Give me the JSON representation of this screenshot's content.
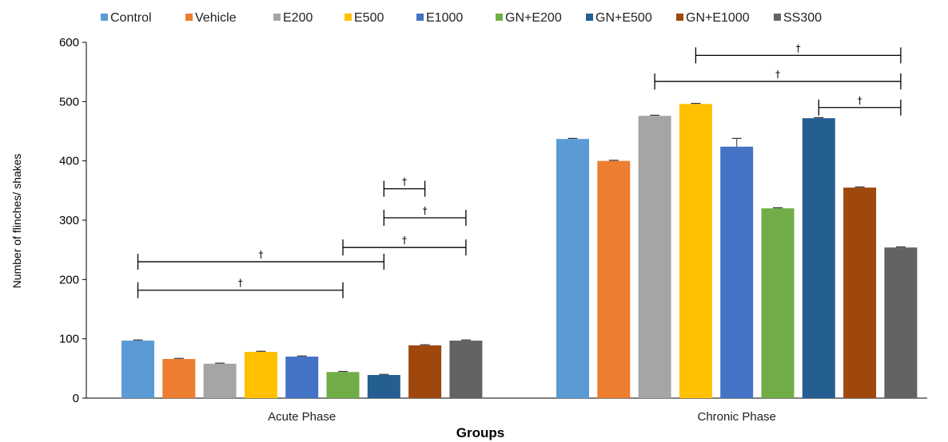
{
  "chart_data": {
    "type": "bar",
    "xlabel": "Groups",
    "ylabel": "Number of flinches/ shakes",
    "ylim": [
      0,
      600
    ],
    "yticks": [
      0,
      100,
      200,
      300,
      400,
      500,
      600
    ],
    "grid": false,
    "legend_position": "top",
    "categories": [
      "Acute Phase",
      "Chronic Phase"
    ],
    "series": [
      {
        "name": "Control",
        "color": "#5B9BD5",
        "values": [
          97,
          437
        ],
        "errors": [
          1,
          1
        ]
      },
      {
        "name": "Vehicle",
        "color": "#ED7D31",
        "values": [
          66,
          400
        ],
        "errors": [
          1,
          1
        ]
      },
      {
        "name": "E200",
        "color": "#A5A5A5",
        "values": [
          58,
          476
        ],
        "errors": [
          1,
          1
        ]
      },
      {
        "name": "E500",
        "color": "#FFC000",
        "values": [
          78,
          496
        ],
        "errors": [
          1,
          1
        ]
      },
      {
        "name": "E1000",
        "color": "#4472C4",
        "values": [
          70,
          424
        ],
        "errors": [
          1,
          14
        ]
      },
      {
        "name": "GN+E200",
        "color": "#70AD47",
        "values": [
          44,
          320
        ],
        "errors": [
          1,
          1
        ]
      },
      {
        "name": "GN+E500",
        "color": "#255E91",
        "values": [
          39,
          472
        ],
        "errors": [
          1,
          1
        ]
      },
      {
        "name": "GN+E1000",
        "color": "#9E480E",
        "values": [
          89,
          355
        ],
        "errors": [
          1,
          1
        ]
      },
      {
        "name": "SS300",
        "color": "#636363",
        "values": [
          97,
          254
        ],
        "errors": [
          1,
          1
        ]
      }
    ],
    "significance": [
      {
        "category": 0,
        "from": 0,
        "to": 5,
        "y": 182,
        "label": "†"
      },
      {
        "category": 0,
        "from": 0,
        "to": 6,
        "y": 230,
        "label": "†"
      },
      {
        "category": 0,
        "from": 5,
        "to": 8,
        "y": 254,
        "label": "†"
      },
      {
        "category": 0,
        "from": 6,
        "to": 8,
        "y": 304,
        "label": "†"
      },
      {
        "category": 0,
        "from": 6,
        "to": 7,
        "y": 353,
        "label": "†"
      },
      {
        "category": 1,
        "from": 6,
        "to": 8,
        "y": 490,
        "label": "†"
      },
      {
        "category": 1,
        "from": 2,
        "to": 8,
        "y": 534,
        "label": "†"
      },
      {
        "category": 1,
        "from": 3,
        "to": 8,
        "y": 578,
        "label": "†"
      }
    ]
  }
}
